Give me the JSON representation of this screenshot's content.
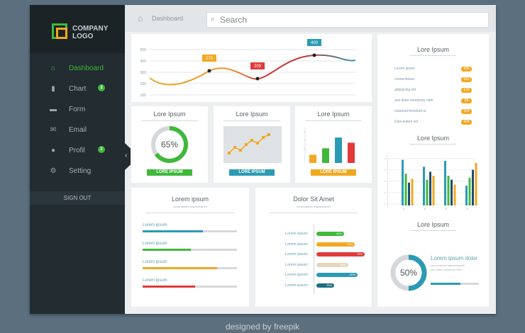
{
  "colors": {
    "green": "#3fb83b",
    "orange": "#f1a821",
    "teal": "#2b9bb4",
    "red": "#e03a3a",
    "navy": "#1f4e6e",
    "beige": "#e3d8bd"
  },
  "logo": {
    "line1": "COMPANY",
    "line2": "LOGO"
  },
  "sidebar": {
    "items": [
      {
        "label": "Dashboard",
        "icon": "home-icon",
        "badge": ""
      },
      {
        "label": "Chart",
        "icon": "bar-chart-icon",
        "badge": "2"
      },
      {
        "label": "Form",
        "icon": "chat-icon",
        "badge": ""
      },
      {
        "label": "Email",
        "icon": "mail-icon",
        "badge": ""
      },
      {
        "label": "Profil",
        "icon": "user-icon",
        "badge": "2"
      },
      {
        "label": "Setting",
        "icon": "gear-icon",
        "badge": ""
      }
    ],
    "signout": "SIGN OUT"
  },
  "topbar": {
    "breadcrumb": "Dashboard",
    "search_placeholder": "Search"
  },
  "line_chart": {
    "chart_data": {
      "type": "line",
      "yticks": [
        100,
        200,
        300,
        400,
        500
      ],
      "ylim": [
        100,
        500
      ],
      "annotations": [
        "270",
        "209",
        "400"
      ]
    }
  },
  "donut_card": {
    "title": "Lore Ipsum",
    "value": "65%",
    "footer": "LORE IPSUM"
  },
  "mini_line_card": {
    "title": "Lore Ipsum",
    "footer": "LORE IPSUM"
  },
  "mini_bar_card": {
    "title": "Lore Ipsum",
    "footer": "LORE IPSUM",
    "values": [
      0.25,
      0.45,
      0.78,
      0.62
    ],
    "colors": [
      "#f1a821",
      "#3fb83b",
      "#2b9bb4",
      "#e03a3a"
    ]
  },
  "progress_card": {
    "title": "Lorem ipsum",
    "subtitle": "consectetuer adipiscing elit",
    "bars": [
      {
        "label": "Lorem ipsum",
        "fill": 0.64,
        "color": "#2b9bb4"
      },
      {
        "label": "Lorem ipsum",
        "fill": 0.51,
        "color": "#3fb83b"
      },
      {
        "label": "Lorem ipsum",
        "fill": 0.79,
        "color": "#f1a821"
      },
      {
        "label": "Lorem ipsum",
        "fill": 0.56,
        "color": "#e03a3a"
      }
    ]
  },
  "pill_card": {
    "title": "Dolor Sit Amet",
    "subtitle": "consectetuer adipiscing elit",
    "rows": [
      {
        "label": "Lorem ipsum",
        "value": "40%",
        "fill": 0.4,
        "color": "#3fb83b"
      },
      {
        "label": "Lorem ipsum",
        "value": "56%",
        "fill": 0.56,
        "color": "#f1a821"
      },
      {
        "label": "Lorem ipsum",
        "value": "70%",
        "fill": 0.7,
        "color": "#e03a3a"
      },
      {
        "label": "Lorem ipsum",
        "value": "46%",
        "fill": 0.46,
        "color": "#e3d8bd"
      },
      {
        "label": "Lorem ipsum",
        "value": "60%",
        "fill": 0.6,
        "color": "#2b9bb4"
      },
      {
        "label": "Lorem ipsum",
        "value": "26%",
        "fill": 0.26,
        "color": "#1f6e80"
      }
    ]
  },
  "stats_card": {
    "title": "Lore Ipsum",
    "rows": [
      {
        "label": "Lorem ipsum",
        "value": "436"
      },
      {
        "label": "consectetuer",
        "value": "541"
      },
      {
        "label": "adipiscing elit",
        "value": "123"
      },
      {
        "label": "sed diam nonummy nibh",
        "value": "98"
      },
      {
        "label": "euismod tincidunt ut",
        "value": "334"
      },
      {
        "label": "Duis autem vel",
        "value": "434"
      }
    ]
  },
  "group_bar_card": {
    "title": "Lore Ipsum",
    "colors": [
      "#2b9bb4",
      "#3fb83b",
      "#1f4e6e",
      "#f1a821"
    ],
    "groups": [
      [
        0.92,
        0.64,
        0.46,
        0.54
      ],
      [
        0.78,
        0.52,
        0.68,
        0.6
      ],
      [
        0.9,
        0.6,
        0.52,
        0.42
      ],
      [
        0.4,
        0.56,
        0.72,
        0.86
      ]
    ]
  },
  "ring_card": {
    "title": "Lore Ipsum",
    "value": "50%",
    "heading": "Lorem ipsum dolor",
    "line1": "consectetuer adipiscing elit",
    "line2": "sed diam nonummy nibh"
  },
  "credit": "designed by freepik"
}
